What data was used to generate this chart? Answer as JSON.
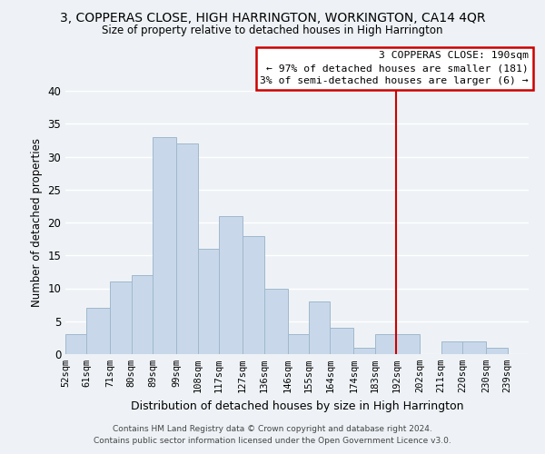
{
  "title": "3, COPPERAS CLOSE, HIGH HARRINGTON, WORKINGTON, CA14 4QR",
  "subtitle": "Size of property relative to detached houses in High Harrington",
  "xlabel": "Distribution of detached houses by size in High Harrington",
  "ylabel": "Number of detached properties",
  "bar_color": "#c8d8ea",
  "bar_edge_color": "#a0b8cc",
  "bin_labels": [
    "52sqm",
    "61sqm",
    "71sqm",
    "80sqm",
    "89sqm",
    "99sqm",
    "108sqm",
    "117sqm",
    "127sqm",
    "136sqm",
    "146sqm",
    "155sqm",
    "164sqm",
    "174sqm",
    "183sqm",
    "192sqm",
    "202sqm",
    "211sqm",
    "220sqm",
    "230sqm",
    "239sqm"
  ],
  "bin_edges": [
    52,
    61,
    71,
    80,
    89,
    99,
    108,
    117,
    127,
    136,
    146,
    155,
    164,
    174,
    183,
    192,
    202,
    211,
    220,
    230,
    239
  ],
  "counts": [
    3,
    7,
    11,
    12,
    33,
    32,
    16,
    21,
    18,
    10,
    3,
    8,
    4,
    1,
    3,
    3,
    0,
    2,
    2,
    1,
    0
  ],
  "vline_x": 192,
  "vline_color": "#cc0000",
  "annotation_text": "3 COPPERAS CLOSE: 190sqm\n← 97% of detached houses are smaller (181)\n3% of semi-detached houses are larger (6) →",
  "annotation_box_color": "#ffffff",
  "annotation_box_edgecolor": "#cc0000",
  "ylim": [
    0,
    40
  ],
  "yticks": [
    0,
    5,
    10,
    15,
    20,
    25,
    30,
    35,
    40
  ],
  "footnote": "Contains HM Land Registry data © Crown copyright and database right 2024.\nContains public sector information licensed under the Open Government Licence v3.0.",
  "background_color": "#eef2f6",
  "grid_color": "#ffffff"
}
